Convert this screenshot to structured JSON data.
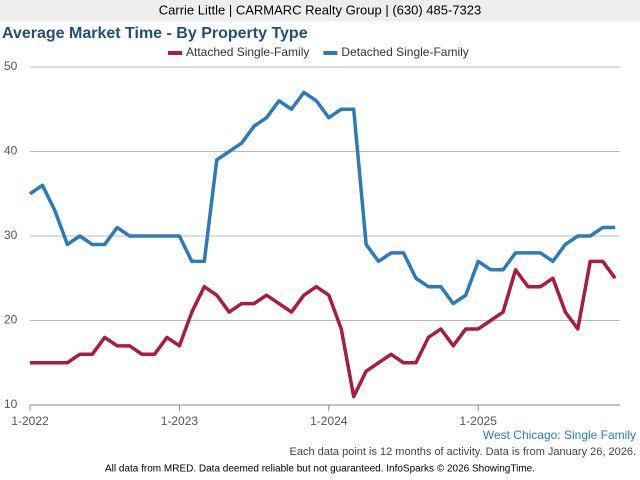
{
  "header": "Carrie Little | CARMARC Realty Group | (630) 485-7323",
  "chart_data": {
    "type": "line",
    "title": "Average Market Time - By Property Type",
    "categories": [
      "1-2022",
      null,
      null,
      null,
      null,
      null,
      null,
      null,
      null,
      null,
      null,
      null,
      "1-2023",
      null,
      null,
      null,
      null,
      null,
      null,
      null,
      null,
      null,
      null,
      null,
      "1-2024",
      null,
      null,
      null,
      null,
      null,
      null,
      null,
      null,
      null,
      null,
      null,
      "1-2025",
      null,
      null,
      null,
      null,
      null,
      null,
      null,
      null,
      null,
      null,
      null
    ],
    "series": [
      {
        "name": "Attached Single-Family",
        "color": "#a81c3e",
        "values": [
          15,
          15,
          15,
          15,
          16,
          16,
          18,
          17,
          17,
          16,
          16,
          18,
          17,
          21,
          24,
          23,
          21,
          22,
          22,
          23,
          22,
          21,
          23,
          24,
          23,
          19,
          11,
          14,
          15,
          16,
          15,
          15,
          18,
          19,
          17,
          19,
          19,
          20,
          21,
          26,
          24,
          24,
          25,
          21,
          19,
          27,
          27,
          25
        ]
      },
      {
        "name": "Detached Single-Family",
        "color": "#2b7bba",
        "values": [
          35,
          36,
          33,
          29,
          30,
          29,
          29,
          31,
          30,
          30,
          30,
          30,
          30,
          27,
          27,
          39,
          40,
          41,
          43,
          44,
          46,
          45,
          47,
          46,
          44,
          45,
          45,
          29,
          27,
          28,
          28,
          25,
          24,
          24,
          22,
          23,
          27,
          26,
          26,
          28,
          28,
          28,
          27,
          29,
          30,
          30,
          31,
          31
        ]
      }
    ],
    "ylim": [
      10,
      50
    ],
    "yticks": [
      10,
      20,
      30,
      40,
      50
    ],
    "grid": true,
    "legend": "top",
    "subtitle": "West Chicago: Single Family"
  },
  "footnotes": [
    "Each data point is 12 months of activity. Data is from January 26, 2026.",
    "All data from MRED. Data deemed reliable but not guaranteed. InfoSparks © 2026 ShowingTime."
  ]
}
